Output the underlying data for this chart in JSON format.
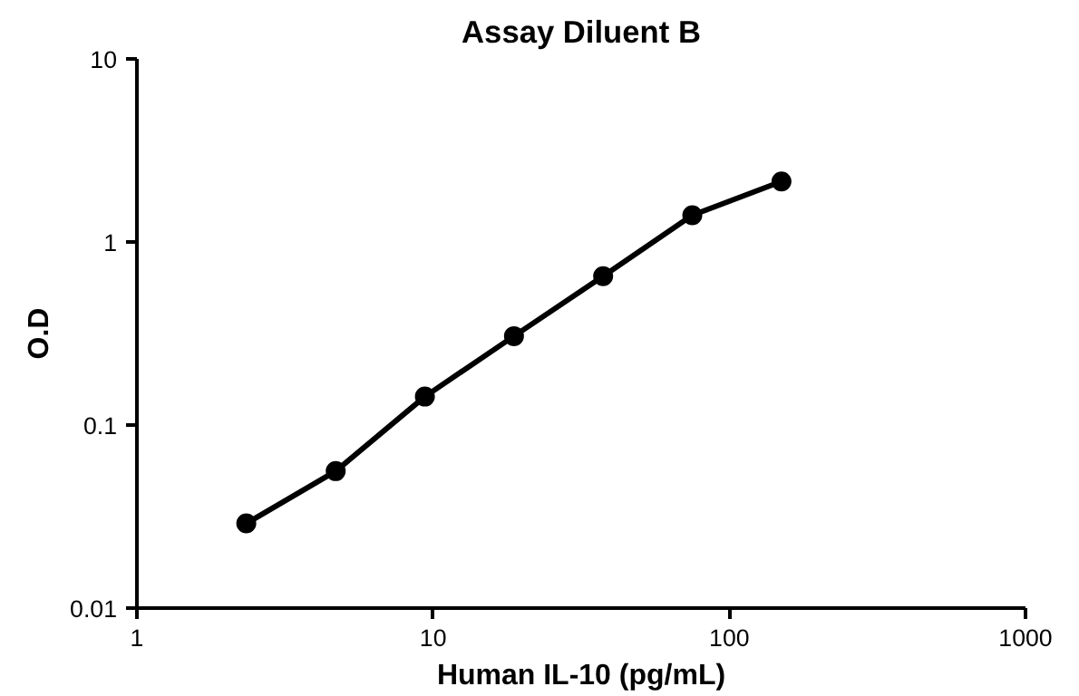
{
  "chart_data": {
    "type": "line",
    "title": "Assay Diluent B",
    "xlabel": "Human IL-10 (pg/mL)",
    "ylabel": "O.D",
    "x": [
      2.34,
      4.69,
      9.38,
      18.75,
      37.5,
      75,
      150
    ],
    "series": [
      {
        "color": "#000000",
        "values": [
          0.029,
          0.056,
          0.143,
          0.306,
          0.65,
          1.4,
          2.14
        ]
      }
    ],
    "xlim": [
      1,
      1000
    ],
    "ylim": [
      0.01,
      10
    ],
    "xticks": [
      1,
      10,
      100,
      1000
    ],
    "yticks": [
      0.01,
      0.1,
      1,
      10
    ],
    "log": "xy",
    "grid": false,
    "marker": "circle",
    "line_style": "solid"
  }
}
